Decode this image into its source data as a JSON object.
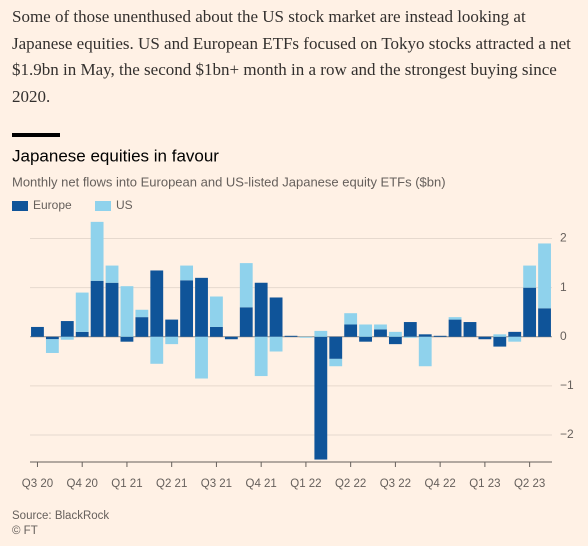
{
  "paragraph": "Some of those unenthused about the US stock market are instead looking at Japanese equities. US and European ETFs focused on Tokyo stocks attracted a net $1.9bn in May, the second $1bn+ month in a row and the strongest buying since 2020.",
  "chart_data": {
    "type": "stacked-bar",
    "title": "Japanese equities in favour",
    "subtitle": "Monthly net flows into European and US-listed Japanese equity ETFs ($bn)",
    "categories": [
      "Q3 20",
      null,
      null,
      "Q4 20",
      null,
      null,
      "Q1 21",
      null,
      null,
      "Q2 21",
      null,
      null,
      "Q3 21",
      null,
      null,
      "Q4 21",
      null,
      null,
      "Q1 22",
      null,
      null,
      "Q2 22",
      null,
      null,
      "Q3 22",
      null,
      null,
      "Q4 22",
      null,
      null,
      "Q1 23",
      null,
      null,
      "Q2 23",
      null
    ],
    "series": [
      {
        "name": "Europe",
        "color": "#0f5499",
        "values": [
          0.2,
          -0.05,
          0.32,
          0.1,
          1.14,
          1.1,
          -0.1,
          0.4,
          1.35,
          0.35,
          1.15,
          1.2,
          0.2,
          -0.05,
          0.6,
          1.1,
          0.8,
          0.02,
          0,
          -2.5,
          -0.45,
          0.25,
          -0.1,
          0.15,
          -0.15,
          0.3,
          0.05,
          0.02,
          0.35,
          0.3,
          -0.05,
          -0.2,
          0.1,
          1.0,
          0.58
        ]
      },
      {
        "name": "US",
        "color": "#8fd2ec",
        "values": [
          0,
          -0.28,
          -0.06,
          0.8,
          1.2,
          0.35,
          1.03,
          0.15,
          -0.55,
          -0.15,
          0.3,
          -0.85,
          0.62,
          0,
          0.9,
          -0.8,
          -0.3,
          0,
          -0.02,
          0.12,
          -0.15,
          0.23,
          0.25,
          0.1,
          0.1,
          -0.02,
          -0.6,
          0,
          0.05,
          0,
          0,
          0.05,
          -0.1,
          0.45,
          1.32
        ]
      }
    ],
    "ylim": [
      -2.55,
      2.5
    ],
    "yticks": [
      2,
      1,
      0,
      {
        "value": -1,
        "label": "−1"
      },
      {
        "value": -2,
        "label": "−2"
      }
    ],
    "grid": true,
    "legend": "top-left",
    "source": "Source: BlackRock",
    "credit": "© FT"
  }
}
